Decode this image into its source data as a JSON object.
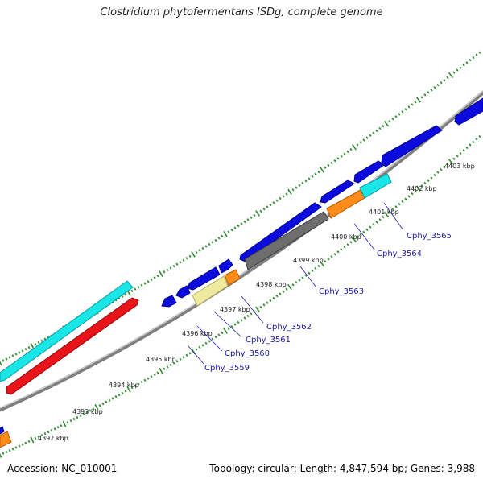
{
  "title": "Clostridium phytofermentans ISDg, complete genome",
  "footer": {
    "accession": "Accession: NC_010001",
    "summary": "Topology: circular; Length: 4,847,594 bp; Genes: 3,988"
  },
  "colors": {
    "background": "#ffffff",
    "backbone": "#999999",
    "tick": "#2e8b2e",
    "gene_label": "#1a1aa6",
    "blue": "#0b0bde",
    "cyan": "#19e6e6",
    "red": "#e8141a",
    "orange": "#ff8c1a",
    "khaki": "#eeeaa0",
    "gray": "#6e6e6e"
  },
  "scale_labels": [
    "4392 kbp",
    "4393 kbp",
    "4394 kbp",
    "4395 kbp",
    "4396 kbp",
    "4397 kbp",
    "4398 kbp",
    "4399 kbp",
    "4400 kbp",
    "4401 kbp",
    "4402 kbp",
    "4403 kbp"
  ],
  "gene_labels": [
    "Cphy_3559",
    "Cphy_3560",
    "Cphy_3561",
    "Cphy_3562",
    "Cphy_3563",
    "Cphy_3564",
    "Cphy_3565"
  ],
  "features": {
    "outer_strand": [
      {
        "color": "blue",
        "direction": "reverse"
      },
      {
        "color": "blue",
        "direction": "reverse"
      },
      {
        "color": "blue",
        "direction": "reverse"
      },
      {
        "color": "blue",
        "direction": "forward"
      },
      {
        "color": "blue",
        "direction": "forward"
      },
      {
        "color": "blue",
        "direction": "forward"
      },
      {
        "color": "blue",
        "direction": "forward"
      },
      {
        "color": "blue",
        "direction": "forward"
      },
      {
        "color": "blue",
        "direction": "forward"
      },
      {
        "color": "cyan",
        "direction": "none"
      }
    ],
    "inner_strand": [
      {
        "color": "red",
        "direction": "forward"
      },
      {
        "color": "khaki",
        "direction": "none"
      },
      {
        "color": "orange",
        "direction": "none"
      },
      {
        "color": "gray",
        "direction": "none"
      },
      {
        "color": "orange",
        "direction": "none"
      },
      {
        "color": "cyan",
        "direction": "none"
      },
      {
        "color": "orange",
        "direction": "none"
      }
    ]
  }
}
